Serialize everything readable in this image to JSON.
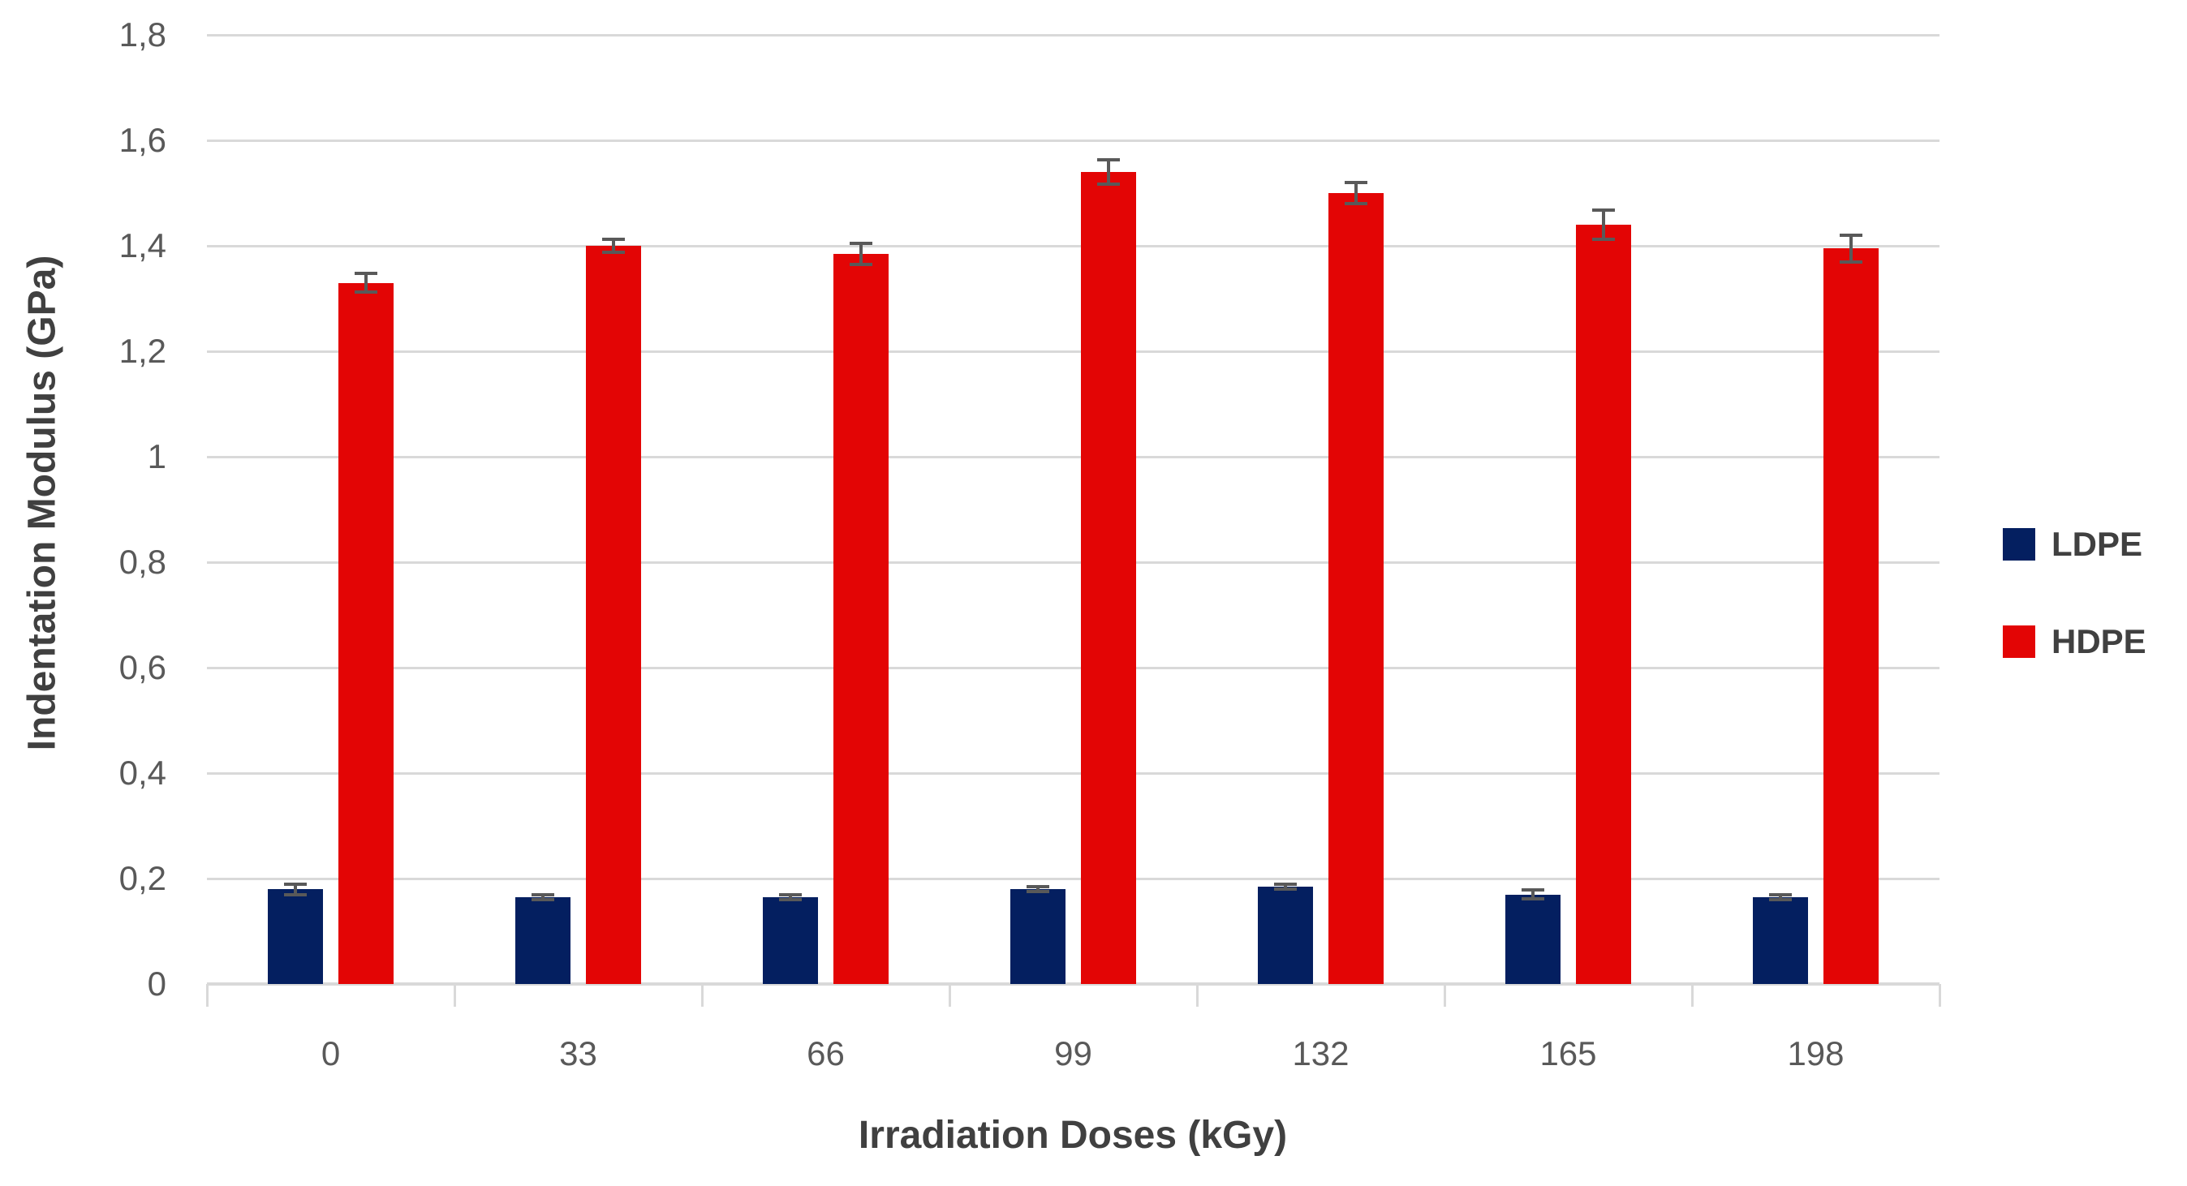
{
  "colors": {
    "ldpe": "#041f60",
    "hdpe": "#e30505",
    "gridline": "#d9d9d9",
    "axis_line": "#d9d9d9",
    "tick_mark": "#d9d9d9",
    "error_bar": "#595959",
    "tick_text": "#595959",
    "title_text": "#404040",
    "background": "#ffffff"
  },
  "chart_data": {
    "type": "bar",
    "title": "",
    "xlabel": "Irradiation Doses (kGy)",
    "ylabel": "Indentation Modulus (GPa)",
    "categories": [
      "0",
      "33",
      "66",
      "99",
      "132",
      "165",
      "198"
    ],
    "series": [
      {
        "name": "LDPE",
        "color": "#041f60",
        "values": [
          0.18,
          0.165,
          0.165,
          0.18,
          0.185,
          0.17,
          0.165
        ],
        "errors": [
          0.01,
          0.005,
          0.005,
          0.005,
          0.005,
          0.008,
          0.005
        ]
      },
      {
        "name": "HDPE",
        "color": "#e30505",
        "values": [
          1.33,
          1.4,
          1.385,
          1.54,
          1.5,
          1.44,
          1.395
        ],
        "errors": [
          0.018,
          0.012,
          0.02,
          0.023,
          0.02,
          0.028,
          0.025
        ]
      }
    ],
    "ylim": [
      0,
      1.8
    ],
    "ytick_values": [
      0,
      0.2,
      0.4,
      0.6,
      0.8,
      1.0,
      1.2,
      1.4,
      1.6,
      1.8
    ],
    "ytick_labels": [
      "0",
      "0,2",
      "0,4",
      "0,6",
      "0,8",
      "1",
      "1,2",
      "1,4",
      "1,6",
      "1,8"
    ],
    "decimal_separator": ",",
    "grid": true,
    "error_bars": true,
    "legend_position": "right"
  }
}
